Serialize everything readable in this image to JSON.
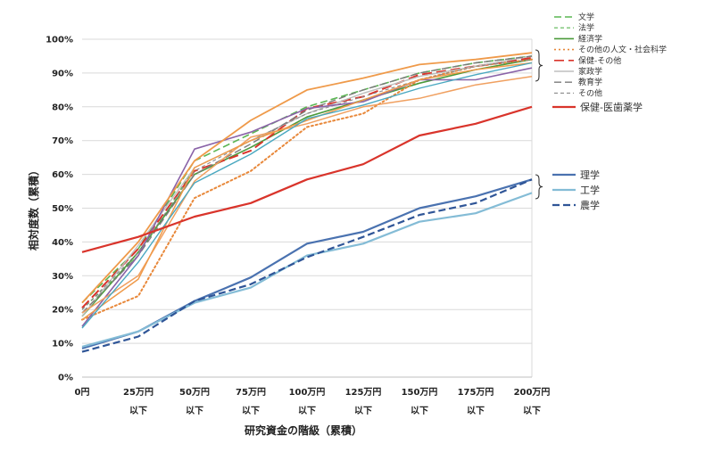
{
  "chart_data": {
    "type": "line",
    "xlabel": "研究資金の階級（累積）",
    "ylabel": "相対度数（累積）",
    "ylim": [
      0,
      100
    ],
    "y_unit": "%",
    "y_ticks": [
      0,
      10,
      20,
      30,
      40,
      50,
      60,
      70,
      80,
      90,
      100
    ],
    "grid": true,
    "categories": [
      "0円",
      "25万円",
      "50万円",
      "75万円",
      "100万円",
      "125万円",
      "150万円",
      "175万円",
      "200万円"
    ],
    "category_sublabels": [
      "",
      "以下",
      "以下",
      "以下",
      "以下",
      "以下",
      "以下",
      "以下",
      "以下"
    ],
    "series": [
      {
        "name": "文学",
        "color": "#5ab552",
        "style": "dash",
        "width": 1.6,
        "values": [
          22,
          38,
          64,
          72,
          80,
          85,
          90,
          93,
          95
        ]
      },
      {
        "name": "法学",
        "color": "#5ab552",
        "style": "shortdash",
        "width": 1.2,
        "values": [
          20,
          36,
          62,
          70,
          78,
          84,
          89,
          92,
          94
        ]
      },
      {
        "name": "経済学",
        "color": "#4a9a3a",
        "style": "solid",
        "width": 1.6,
        "values": [
          18,
          37,
          60,
          68,
          77,
          82,
          87,
          91,
          94
        ]
      },
      {
        "name": "その他の人文・社会科学",
        "color": "#e8883a",
        "style": "dot",
        "width": 2,
        "values": [
          17,
          24,
          53,
          61,
          74,
          78,
          88,
          92,
          94
        ]
      },
      {
        "name": "保健-その他",
        "color": "#d9342b",
        "style": "longdash",
        "width": 2,
        "values": [
          20.5,
          38,
          61,
          67,
          79.5,
          83,
          89.5,
          92,
          94.5
        ]
      },
      {
        "name": "家政学",
        "color": "#bfbfbf",
        "style": "solid",
        "width": 1.4,
        "values": [
          18,
          39,
          62,
          70,
          78,
          84,
          89,
          92,
          95
        ]
      },
      {
        "name": "教育学",
        "color": "#7a7a7a",
        "style": "dash",
        "width": 1.4,
        "values": [
          19,
          36,
          60,
          69,
          79,
          85,
          90,
          93,
          95
        ]
      },
      {
        "name": "その他",
        "color": "#8a8a8a",
        "style": "shortdash",
        "width": 1.1,
        "values": [
          20,
          37,
          61,
          70,
          78,
          83,
          88,
          92,
          94
        ]
      },
      {
        "name": "",
        "color": "#8a63a8",
        "style": "solid",
        "width": 1.6,
        "values": [
          15,
          36,
          67.5,
          72.5,
          79.5,
          81.5,
          88,
          88,
          91.5
        ]
      },
      {
        "name": "",
        "color": "#ef9a4a",
        "style": "solid",
        "width": 1.8,
        "values": [
          22,
          40,
          64,
          76,
          85,
          88.5,
          92.5,
          94,
          96
        ]
      },
      {
        "name": "",
        "color": "#f0a060",
        "style": "solid",
        "width": 1.5,
        "values": [
          19,
          30,
          58,
          71,
          75,
          80,
          82.5,
          86.5,
          89
        ]
      },
      {
        "name": "",
        "color": "#ef9a4a",
        "style": "solid",
        "width": 1.5,
        "values": [
          17,
          29,
          62,
          70,
          76,
          82,
          88,
          91,
          93
        ]
      },
      {
        "name": "",
        "color": "#4aa8c0",
        "style": "solid",
        "width": 1.4,
        "values": [
          14.5,
          34,
          57.5,
          66,
          76.5,
          80.5,
          85.5,
          89.5,
          93
        ]
      },
      {
        "name": "保健-医歯薬学",
        "color": "#d9342b",
        "style": "solid",
        "width": 2.2,
        "values": [
          37,
          41.5,
          47.5,
          51.5,
          58.5,
          63,
          71.5,
          75,
          80
        ]
      },
      {
        "name": "理学",
        "color": "#4a72b0",
        "style": "solid",
        "width": 2.2,
        "values": [
          8.5,
          13.5,
          22.5,
          29.5,
          39.5,
          43,
          50,
          53.5,
          58.5
        ]
      },
      {
        "name": "工学",
        "color": "#84bcd6",
        "style": "solid",
        "width": 2.2,
        "values": [
          9,
          13.5,
          22,
          26.5,
          36,
          39.5,
          46,
          48.5,
          54.5
        ]
      },
      {
        "name": "農学",
        "color": "#2f5597",
        "style": "dash",
        "width": 2.2,
        "values": [
          7.5,
          12,
          22.5,
          27.5,
          35.5,
          41.5,
          48,
          51.5,
          58.5
        ]
      }
    ]
  }
}
